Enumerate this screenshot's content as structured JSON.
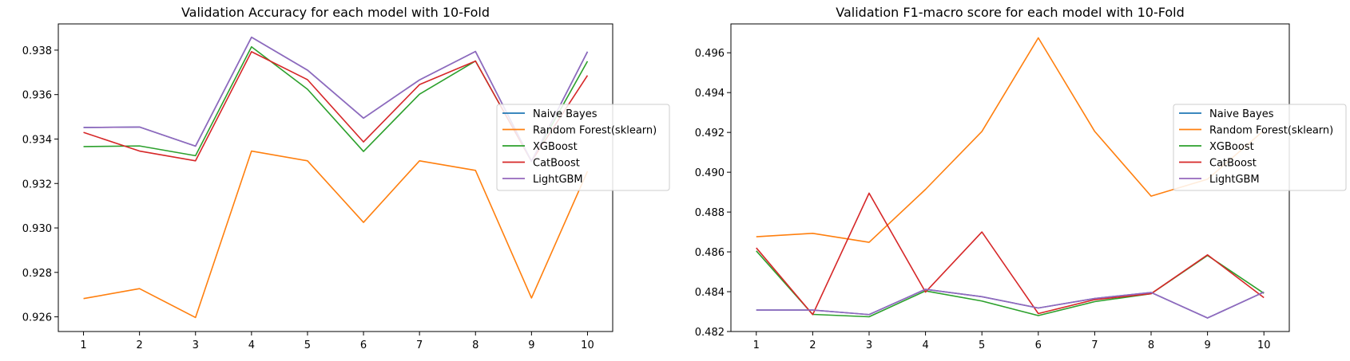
{
  "chart_data": [
    {
      "type": "line",
      "title": "Validation Accuracy for each model with 10-Fold",
      "xlabel": "",
      "ylabel": "",
      "x": [
        1,
        2,
        3,
        4,
        5,
        6,
        7,
        8,
        9,
        10
      ],
      "xlim": [
        0.55,
        10.45
      ],
      "ylim": [
        0.92534,
        0.93918
      ],
      "yticks": [
        0.926,
        0.928,
        0.93,
        0.932,
        0.934,
        0.936,
        0.938
      ],
      "grid": false,
      "legend": "center-right",
      "series": [
        {
          "name": "Naive Bayes",
          "color": "#1f77b4",
          "values": [
            0.93452,
            0.93454,
            0.93368,
            0.93858,
            0.9371,
            0.93494,
            0.93666,
            0.93794,
            0.933,
            0.93793
          ]
        },
        {
          "name": "Random Forest(sklearn)",
          "color": "#ff7f0e",
          "values": [
            0.92682,
            0.92727,
            0.92597,
            0.93346,
            0.93302,
            0.93025,
            0.93302,
            0.93259,
            0.92685,
            0.93255
          ]
        },
        {
          "name": "XGBoost",
          "color": "#2ca02c",
          "values": [
            0.93366,
            0.93369,
            0.93325,
            0.93815,
            0.93624,
            0.93344,
            0.93602,
            0.93751,
            0.933,
            0.9375
          ]
        },
        {
          "name": "CatBoost",
          "color": "#d62728",
          "values": [
            0.9343,
            0.93346,
            0.93302,
            0.93793,
            0.93667,
            0.93387,
            0.93645,
            0.93751,
            0.933,
            0.93686
          ]
        },
        {
          "name": "LightGBM",
          "color": "#9467bd",
          "values": [
            0.93452,
            0.93454,
            0.93368,
            0.93858,
            0.9371,
            0.93494,
            0.93666,
            0.93794,
            0.933,
            0.93793
          ]
        }
      ]
    },
    {
      "type": "line",
      "title": "Validation F1-macro score for each model with 10-Fold",
      "xlabel": "",
      "ylabel": "",
      "x": [
        1,
        2,
        3,
        4,
        5,
        6,
        7,
        8,
        9,
        10
      ],
      "xlim": [
        0.55,
        10.45
      ],
      "ylim": [
        0.482,
        0.49745
      ],
      "yticks": [
        0.482,
        0.484,
        0.486,
        0.488,
        0.49,
        0.492,
        0.494,
        0.496
      ],
      "grid": false,
      "legend": "center-right",
      "series": [
        {
          "name": "Naive Bayes",
          "color": "#1f77b4",
          "values": [
            0.48308,
            0.48308,
            0.48285,
            0.48412,
            0.48375,
            0.48318,
            0.48366,
            0.48396,
            0.48268,
            0.48398
          ]
        },
        {
          "name": "Random Forest(sklearn)",
          "color": "#ff7f0e",
          "values": [
            0.48676,
            0.48693,
            0.48648,
            0.48914,
            0.49205,
            0.49675,
            0.49205,
            0.4888,
            0.48965,
            0.4921
          ]
        },
        {
          "name": "XGBoost",
          "color": "#2ca02c",
          "values": [
            0.48605,
            0.48286,
            0.48274,
            0.48404,
            0.48353,
            0.4828,
            0.4835,
            0.4839,
            0.48582,
            0.48392
          ]
        },
        {
          "name": "CatBoost",
          "color": "#d62728",
          "values": [
            0.4862,
            0.48285,
            0.48895,
            0.48398,
            0.487,
            0.4829,
            0.4836,
            0.4839,
            0.48585,
            0.4837
          ]
        },
        {
          "name": "LightGBM",
          "color": "#9467bd",
          "values": [
            0.48308,
            0.48308,
            0.48285,
            0.48412,
            0.48375,
            0.48318,
            0.48366,
            0.48396,
            0.48268,
            0.48398
          ]
        }
      ]
    }
  ]
}
